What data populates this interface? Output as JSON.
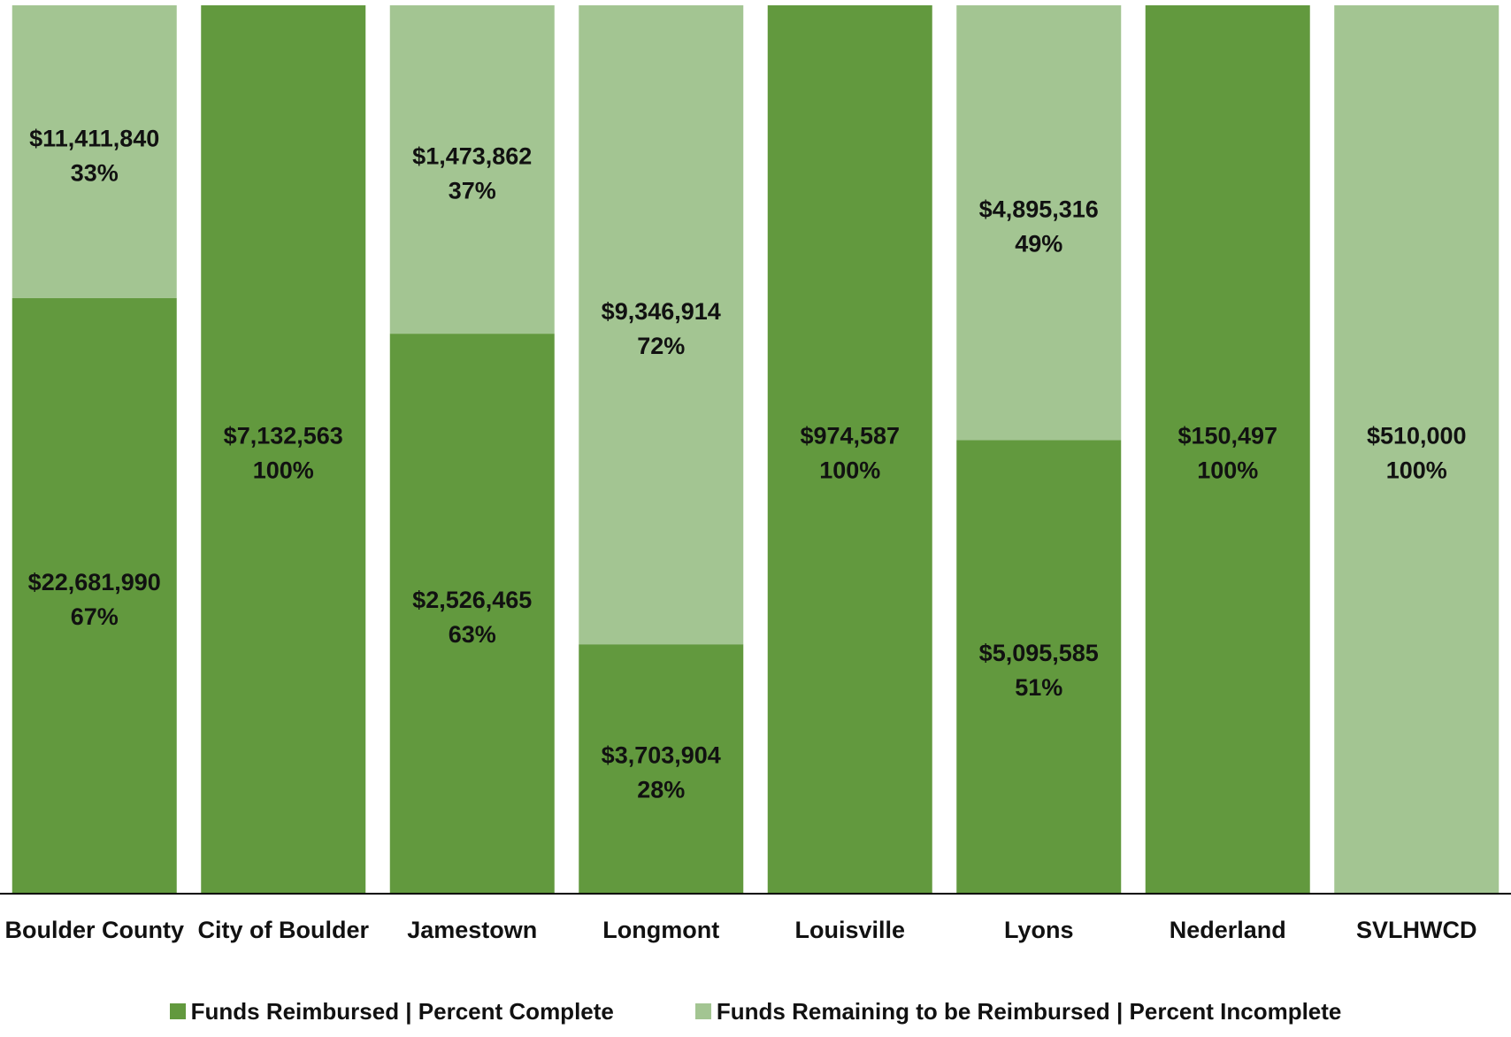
{
  "chart_data": {
    "type": "bar",
    "stacked": true,
    "normalized": true,
    "categories": [
      "Boulder County",
      "City of Boulder",
      "Jamestown",
      "Longmont",
      "Louisville",
      "Lyons",
      "Nederland",
      "SVLHWCD"
    ],
    "series": [
      {
        "name": "Funds Reimbursed | Percent Complete",
        "color": "#62993e",
        "values": [
          0.67,
          1.0,
          0.63,
          0.28,
          1.0,
          0.51,
          1.0,
          0
        ],
        "amount_labels": [
          "$22,681,990",
          "$7,132,563",
          "$2,526,465",
          "$3,703,904",
          "$974,587",
          "$5,095,585",
          "$150,497",
          ""
        ],
        "percent_labels": [
          "67%",
          "100%",
          "63%",
          "28%",
          "100%",
          "51%",
          "100%",
          ""
        ]
      },
      {
        "name": "Funds Remaining to be Reimbursed | Percent Incomplete",
        "color": "#a3c592",
        "values": [
          0.33,
          0,
          0.37,
          0.72,
          0,
          0.49,
          0,
          1.0
        ],
        "amount_labels": [
          "$11,411,840",
          "",
          "$1,473,862",
          "$9,346,914",
          "",
          "$4,895,316",
          "",
          "$510,000"
        ],
        "percent_labels": [
          "33%",
          "",
          "37%",
          "72%",
          "",
          "49%",
          "",
          "100%"
        ]
      }
    ],
    "ylim": [
      0,
      1
    ],
    "grid": false,
    "legend_position": "bottom"
  }
}
